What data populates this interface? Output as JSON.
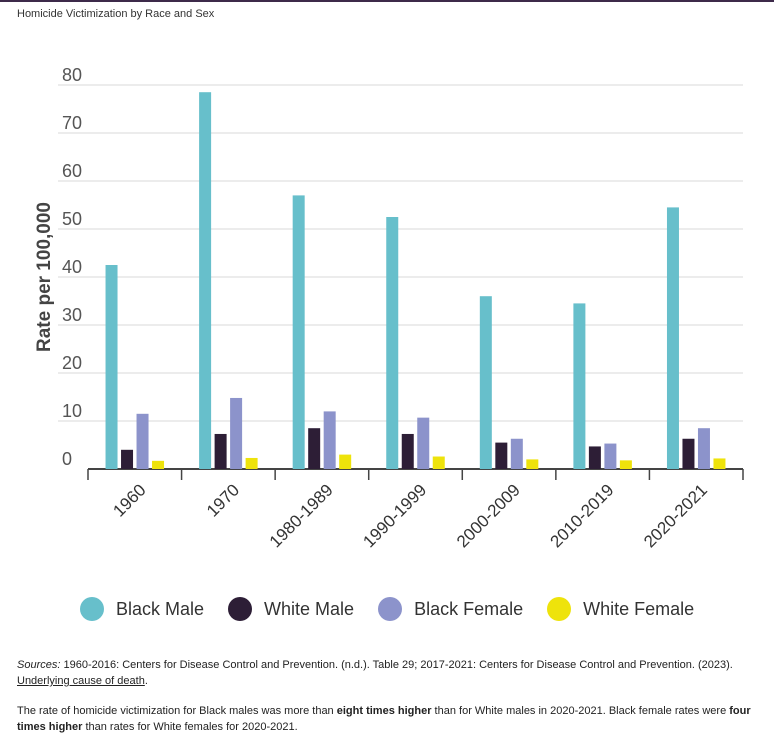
{
  "title": "Homicide Victimization by Race and Sex",
  "chart_data": {
    "type": "bar",
    "ylabel": "Rate per 100,000",
    "ylim": [
      0,
      80
    ],
    "yticks": [
      0,
      10,
      20,
      30,
      40,
      50,
      60,
      70,
      80
    ],
    "grid": true,
    "legend_position": "bottom",
    "categories": [
      "1960",
      "1970",
      "1980-1989",
      "1990-1999",
      "2000-2009",
      "2010-2019",
      "2020-2021"
    ],
    "series": [
      {
        "name": "Black Male",
        "color": "#67bfcb",
        "values": [
          42.5,
          78.5,
          57,
          52.5,
          36,
          34.5,
          54.5
        ]
      },
      {
        "name": "White Male",
        "color": "#2d1e36",
        "values": [
          4,
          7.3,
          8.5,
          7.3,
          5.5,
          4.7,
          6.3
        ]
      },
      {
        "name": "Black Female",
        "color": "#8c93cb",
        "values": [
          11.5,
          14.8,
          12,
          10.7,
          6.3,
          5.3,
          8.5
        ]
      },
      {
        "name": "White Female",
        "color": "#eee30b",
        "values": [
          1.7,
          2.3,
          3,
          2.6,
          2,
          1.8,
          2.2
        ]
      }
    ]
  },
  "sources": {
    "label": "Sources:",
    "text": " 1960-2016: Centers for Disease Control and Prevention. (n.d.). Table 29; 2017-2021: Centers for Disease Control and Prevention. (2023).",
    "link": "Underlying cause of death",
    "end": "."
  },
  "note": {
    "p1": "The rate of homicide victimization for Black males was more than ",
    "b1": "eight times higher",
    "p2": " than for White males in 2020-2021. Black female rates were ",
    "b2": "four times higher",
    "p3": " than rates for White females for 2020-2021."
  }
}
